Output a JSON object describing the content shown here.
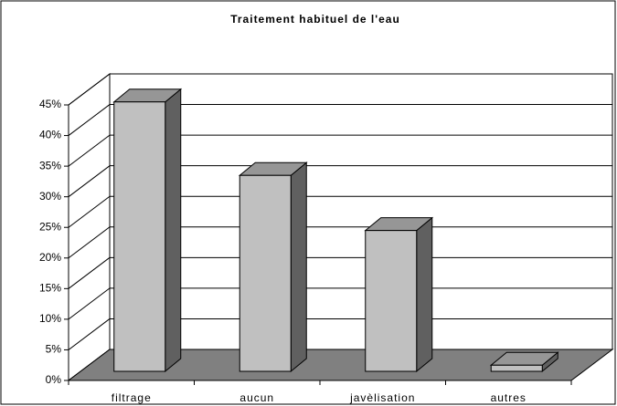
{
  "chart_data": {
    "type": "bar3d",
    "title": "Traitement habituel de l'eau",
    "categories": [
      "filtrage",
      "aucun",
      "javèlisation",
      "autres"
    ],
    "values": [
      44,
      32,
      23,
      1
    ],
    "color": "#c0c0c0",
    "ylim": [
      0,
      45
    ],
    "yticks": [
      {
        "value": 0,
        "label": "0%"
      },
      {
        "value": 5,
        "label": "5%"
      },
      {
        "value": 10,
        "label": "10%"
      },
      {
        "value": 15,
        "label": "15%"
      },
      {
        "value": 20,
        "label": "20%"
      },
      {
        "value": 25,
        "label": "25%"
      },
      {
        "value": 30,
        "label": "30%"
      },
      {
        "value": 35,
        "label": "35%"
      },
      {
        "value": 40,
        "label": "40%"
      },
      {
        "value": 45,
        "label": "45%"
      }
    ],
    "grid": true
  }
}
